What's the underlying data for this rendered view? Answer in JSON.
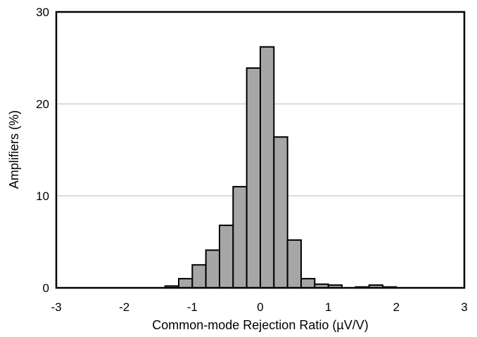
{
  "chart_data": {
    "type": "bar",
    "title": "",
    "xlabel": "Common-mode Rejection Ratio (µV/V)",
    "ylabel": "Amplifiers (%)",
    "xlim": [
      -3,
      3
    ],
    "ylim": [
      0,
      30
    ],
    "xticks": [
      "-3",
      "-2",
      "-1",
      "0",
      "1",
      "2",
      "3"
    ],
    "yticks": [
      "0",
      "10",
      "20",
      "30"
    ],
    "grid": "horizontal",
    "bin_width": 0.2,
    "bins": [
      {
        "x": -1.3,
        "value": 0.2
      },
      {
        "x": -1.1,
        "value": 1.0
      },
      {
        "x": -0.9,
        "value": 2.5
      },
      {
        "x": -0.7,
        "value": 4.1
      },
      {
        "x": -0.5,
        "value": 6.8
      },
      {
        "x": -0.3,
        "value": 11.0
      },
      {
        "x": -0.1,
        "value": 23.9
      },
      {
        "x": 0.1,
        "value": 26.2
      },
      {
        "x": 0.3,
        "value": 16.4
      },
      {
        "x": 0.5,
        "value": 5.2
      },
      {
        "x": 0.7,
        "value": 1.0
      },
      {
        "x": 0.9,
        "value": 0.4
      },
      {
        "x": 1.1,
        "value": 0.3
      },
      {
        "x": 1.5,
        "value": 0.1
      },
      {
        "x": 1.7,
        "value": 0.3
      },
      {
        "x": 1.9,
        "value": 0.1
      }
    ],
    "bar_color": "#a6a6a6",
    "edge_color": "#000000"
  }
}
